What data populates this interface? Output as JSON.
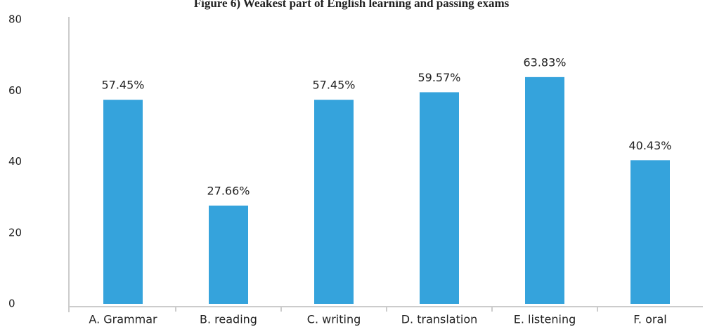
{
  "chart_data": {
    "type": "bar",
    "title": "Figure 6) Weakest part of English learning and passing exams",
    "categories": [
      "A. Grammar",
      "B. reading",
      "C. writing",
      "D. translation",
      "E. listening",
      "F. oral"
    ],
    "values": [
      57.45,
      27.66,
      57.45,
      59.57,
      63.83,
      40.43
    ],
    "value_labels": [
      "57.45%",
      "27.66%",
      "57.45%",
      "59.57%",
      "63.83%",
      "40.43%"
    ],
    "color": "#35a3dc",
    "ylim": [
      0,
      80
    ],
    "yticks": [
      0,
      20,
      40,
      60,
      80
    ],
    "grid": false
  }
}
